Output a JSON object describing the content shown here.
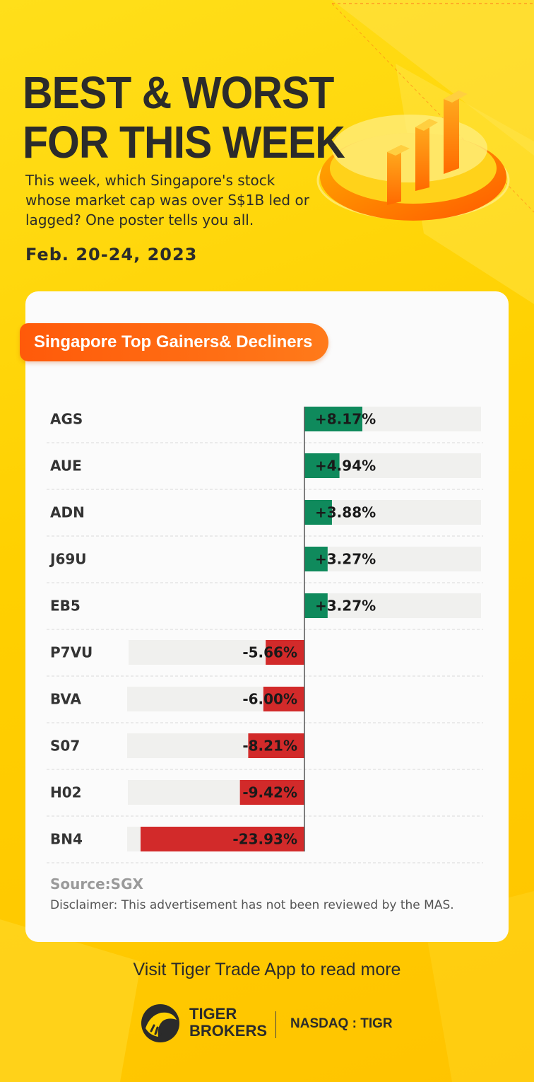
{
  "title_line1": "BEST & WORST",
  "title_line2": "FOR THIS WEEK",
  "intro": "This week, which Singapore's stock whose market cap was over S$1B led or lagged? One poster tells you all.",
  "date": "Feb. 20-24, 2023",
  "section_title": "Singapore Top Gainers& Decliners",
  "source": "Source:SGX",
  "disclaimer": "Disclaimer: This advertisement has not been reviewed by the MAS.",
  "cta": "Visit Tiger Trade App to read more",
  "brand_line1": "TIGER",
  "brand_line2": "BROKERS",
  "ticker": "NASDAQ : TIGR",
  "colors": {
    "gain": "#0f8a5c",
    "loss": "#d22a2a",
    "track": "#f0f0ee",
    "accent": "#ff6a10"
  },
  "chart_data": {
    "type": "bar",
    "orientation": "horizontal-diverging",
    "categories": [
      "AGS",
      "AUE",
      "ADN",
      "J69U",
      "EB5",
      "P7VU",
      "BVA",
      "S07",
      "H02",
      "BN4"
    ],
    "values": [
      8.17,
      4.94,
      3.88,
      3.27,
      3.27,
      -5.66,
      -6.0,
      -8.21,
      -9.42,
      -23.93
    ],
    "labels": [
      "+8.17%",
      "+4.94%",
      "+3.88%",
      "+3.27%",
      "+3.27%",
      "-5.66%",
      "-6.00%",
      "-8.21%",
      "-9.42%",
      "-23.93%"
    ],
    "unit": "%"
  }
}
